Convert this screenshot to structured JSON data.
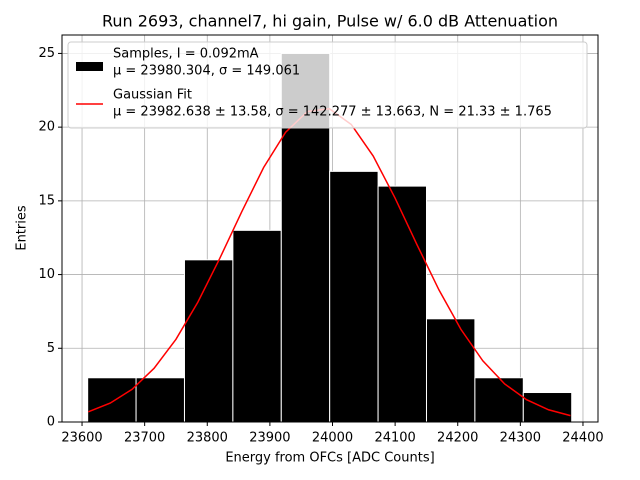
{
  "chart_data": {
    "type": "histogram",
    "title": "Run 2693, channel7, hi gain, Pulse w/ 6.0 dB Attenuation",
    "xlabel": "Energy from OFCs [ADC Counts]",
    "ylabel": "Entries",
    "xlim": [
      23568,
      24424
    ],
    "ylim": [
      0,
      26.25
    ],
    "xticks": [
      23600,
      23700,
      23800,
      23900,
      24000,
      24100,
      24200,
      24300,
      24400
    ],
    "yticks": [
      0,
      5,
      10,
      15,
      20,
      25
    ],
    "grid": true,
    "legend": "upper left",
    "histogram": {
      "name": "Samples, I = 0.092mA",
      "stats": "μ = 23980.304, σ = 149.061",
      "color": "#000000",
      "edgecolor": "#ffffff",
      "bins": [
        23609,
        23686.3,
        23763.6,
        23840.9,
        23918.2,
        23995.5,
        24072.8,
        24150.1,
        24227.4,
        24304.7,
        24382
      ],
      "counts": [
        3,
        3,
        11,
        13,
        25,
        17,
        16,
        7,
        3,
        2
      ]
    },
    "fit": {
      "name": "Gaussian Fit",
      "stats": "μ = 23982.638 ± 13.58, σ = 142.277 ± 13.663, N = 21.33 ± 1.765",
      "color": "#ff0000",
      "x": [
        23610,
        23645,
        23680,
        23715,
        23750,
        23785,
        23820,
        23855,
        23890,
        23925,
        23960,
        23995,
        24030,
        24065,
        24100,
        24135,
        24170,
        24205,
        24240,
        24275,
        24310,
        24345,
        24380
      ],
      "values": [
        0.69,
        1.28,
        2.22,
        3.64,
        5.61,
        8.13,
        11.1,
        14.26,
        17.26,
        19.65,
        21.06,
        21.25,
        20.18,
        18.04,
        15.18,
        12.02,
        8.96,
        6.29,
        4.15,
        2.58,
        1.51,
        0.83,
        0.43
      ]
    }
  }
}
